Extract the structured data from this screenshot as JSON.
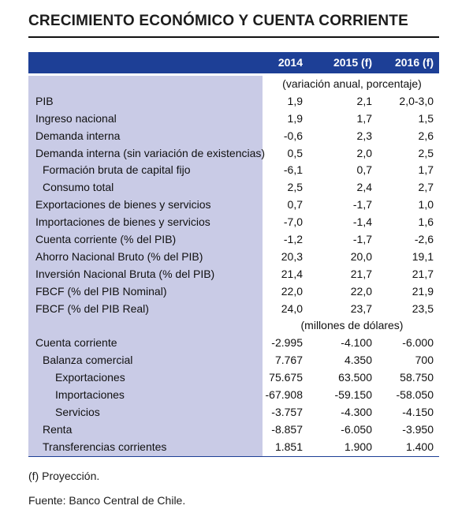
{
  "title": "CRECIMIENTO ECONÓMICO Y CUENTA CORRIENTE",
  "colors": {
    "header_bg": "#1d3f96",
    "label_band": "#c9cbe6"
  },
  "header": {
    "col1": "2014",
    "col2": "2015 (f)",
    "col3": "2016 (f)"
  },
  "unit_real": "(variación anual, porcentaje)",
  "rows_real": [
    {
      "label": "PIB",
      "v1": "1,9",
      "v2": "2,1",
      "v3": "2,0-3,0"
    },
    {
      "label": "Ingreso nacional",
      "v1": "1,9",
      "v2": "1,7",
      "v3": "1,5"
    },
    {
      "label": "Demanda interna",
      "v1": "-0,6",
      "v2": "2,3",
      "v3": "2,6"
    },
    {
      "label": "Demanda interna (sin variación de existencias)",
      "v1": "0,5",
      "v2": "2,0",
      "v3": "2,5"
    },
    {
      "label": "Formación bruta de capital fijo",
      "v1": "-6,1",
      "v2": "0,7",
      "v3": "1,7"
    },
    {
      "label": "Consumo total",
      "v1": "2,5",
      "v2": "2,4",
      "v3": "2,7"
    },
    {
      "label": "Exportaciones de bienes y servicios",
      "v1": "0,7",
      "v2": "-1,7",
      "v3": "1,0"
    },
    {
      "label": "Importaciones de bienes y servicios",
      "v1": "-7,0",
      "v2": "-1,4",
      "v3": "1,6"
    },
    {
      "label": "Cuenta corriente (% del PIB)",
      "v1": "-1,2",
      "v2": "-1,7",
      "v3": "-2,6"
    },
    {
      "label": "Ahorro Nacional Bruto (% del PIB)",
      "v1": "20,3",
      "v2": "20,0",
      "v3": "19,1"
    },
    {
      "label": "Inversión Nacional Bruta (% del PIB)",
      "v1": "21,4",
      "v2": "21,7",
      "v3": "21,7"
    },
    {
      "label": "FBCF (% del PIB Nominal)",
      "v1": "22,0",
      "v2": "22,0",
      "v3": "21,9"
    },
    {
      "label": "FBCF (% del PIB Real)",
      "v1": "24,0",
      "v2": "23,7",
      "v3": "23,5"
    }
  ],
  "unit_usd": "(millones de dólares)",
  "rows_usd": [
    {
      "label": "Cuenta corriente",
      "v1": "-2.995",
      "v2": "-4.100",
      "v3": "-6.000"
    },
    {
      "label": "Balanza comercial",
      "v1": "7.767",
      "v2": "4.350",
      "v3": "700"
    },
    {
      "label": "Exportaciones",
      "v1": "75.675",
      "v2": "63.500",
      "v3": "58.750"
    },
    {
      "label": "Importaciones",
      "v1": "-67.908",
      "v2": "-59.150",
      "v3": "-58.050"
    },
    {
      "label": "Servicios",
      "v1": "-3.757",
      "v2": "-4.300",
      "v3": "-4.150"
    },
    {
      "label": "Renta",
      "v1": "-8.857",
      "v2": "-6.050",
      "v3": "-3.950"
    },
    {
      "label": "Transferencias corrientes",
      "v1": "1.851",
      "v2": "1.900",
      "v3": "1.400"
    }
  ],
  "footnote": "(f) Proyección.",
  "source": "Fuente: Banco Central de Chile."
}
